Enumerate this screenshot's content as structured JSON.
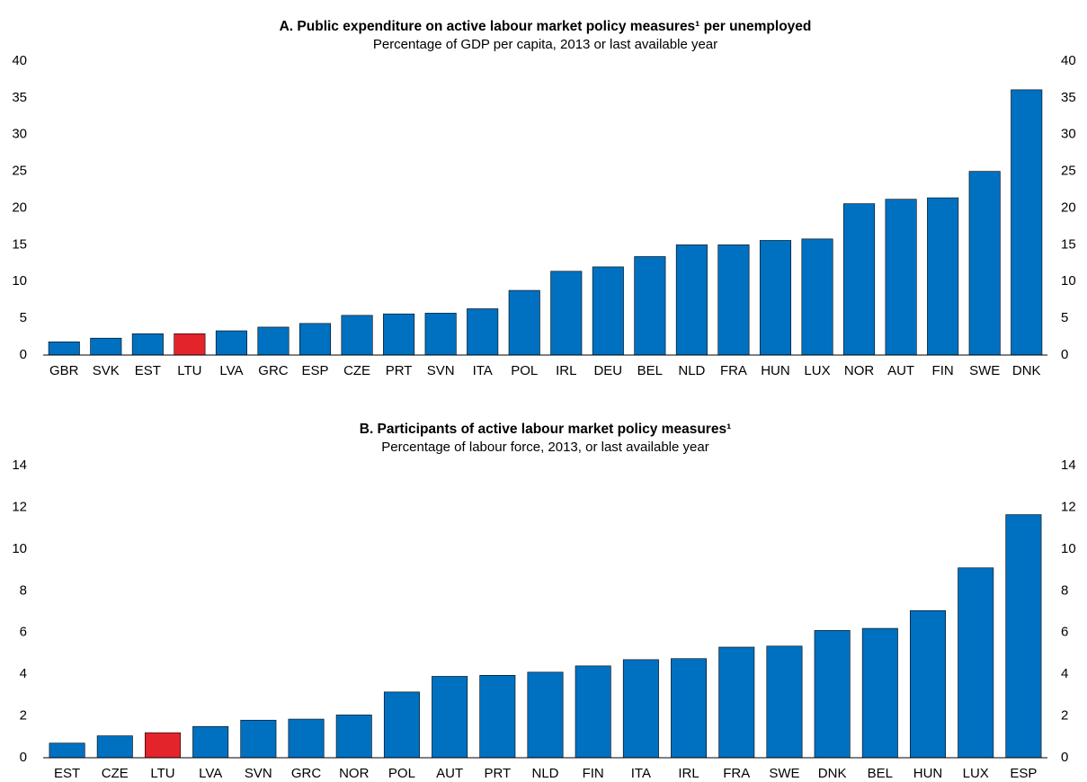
{
  "chart_data": [
    {
      "type": "bar",
      "title": "A. Public expenditure on active labour market policy measures¹ per unemployed",
      "subtitle": "Percentage of GDP per capita, 2013 or last available year",
      "categories": [
        "GBR",
        "SVK",
        "EST",
        "LTU",
        "LVA",
        "GRC",
        "ESP",
        "CZE",
        "PRT",
        "SVN",
        "ITA",
        "POL",
        "IRL",
        "DEU",
        "BEL",
        "NLD",
        "FRA",
        "HUN",
        "LUX",
        "NOR",
        "AUT",
        "FIN",
        "SWE",
        "DNK"
      ],
      "values": [
        1.8,
        2.3,
        2.9,
        2.9,
        3.3,
        3.8,
        4.3,
        5.4,
        5.6,
        5.7,
        6.3,
        8.8,
        11.4,
        12.0,
        13.4,
        15.0,
        15.0,
        15.6,
        15.8,
        20.6,
        21.2,
        21.4,
        25.0,
        36.1
      ],
      "colors": [
        "#0070c0",
        "#0070c0",
        "#0070c0",
        "#e3242b",
        "#0070c0",
        "#0070c0",
        "#0070c0",
        "#0070c0",
        "#0070c0",
        "#0070c0",
        "#0070c0",
        "#0070c0",
        "#0070c0",
        "#0070c0",
        "#0070c0",
        "#0070c0",
        "#0070c0",
        "#0070c0",
        "#0070c0",
        "#0070c0",
        "#0070c0",
        "#0070c0",
        "#0070c0",
        "#0070c0"
      ],
      "ylim": [
        0,
        40
      ],
      "yticks": [
        0,
        5,
        10,
        15,
        20,
        25,
        30,
        35,
        40
      ],
      "grid": false
    },
    {
      "type": "bar",
      "title": "B. Participants of active labour market policy measures¹",
      "subtitle": "Percentage of labour force, 2013, or last available year",
      "categories": [
        "EST",
        "CZE",
        "LTU",
        "LVA",
        "SVN",
        "GRC",
        "NOR",
        "POL",
        "AUT",
        "PRT",
        "NLD",
        "FIN",
        "ITA",
        "IRL",
        "FRA",
        "SWE",
        "DNK",
        "BEL",
        "HUN",
        "LUX",
        "ESP"
      ],
      "values": [
        0.7,
        1.05,
        1.2,
        1.5,
        1.8,
        1.85,
        2.05,
        3.15,
        3.9,
        3.95,
        4.1,
        4.4,
        4.7,
        4.75,
        5.3,
        5.35,
        6.1,
        6.2,
        7.05,
        9.1,
        11.65
      ],
      "colors": [
        "#0070c0",
        "#0070c0",
        "#e3242b",
        "#0070c0",
        "#0070c0",
        "#0070c0",
        "#0070c0",
        "#0070c0",
        "#0070c0",
        "#0070c0",
        "#0070c0",
        "#0070c0",
        "#0070c0",
        "#0070c0",
        "#0070c0",
        "#0070c0",
        "#0070c0",
        "#0070c0",
        "#0070c0",
        "#0070c0",
        "#0070c0"
      ],
      "ylim": [
        0,
        14
      ],
      "yticks": [
        0,
        2,
        4,
        6,
        8,
        10,
        12,
        14
      ],
      "grid": false
    }
  ]
}
